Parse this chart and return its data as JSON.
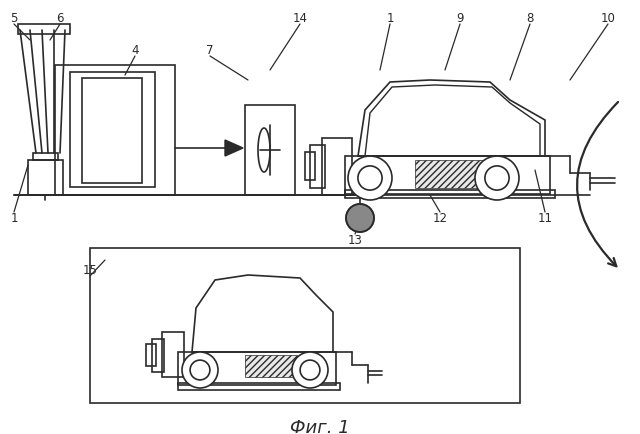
{
  "bg_color": "#ffffff",
  "line_color": "#2a2a2a",
  "title": "Фиг. 1",
  "title_fontsize": 13,
  "fig_width": 6.4,
  "fig_height": 4.34
}
